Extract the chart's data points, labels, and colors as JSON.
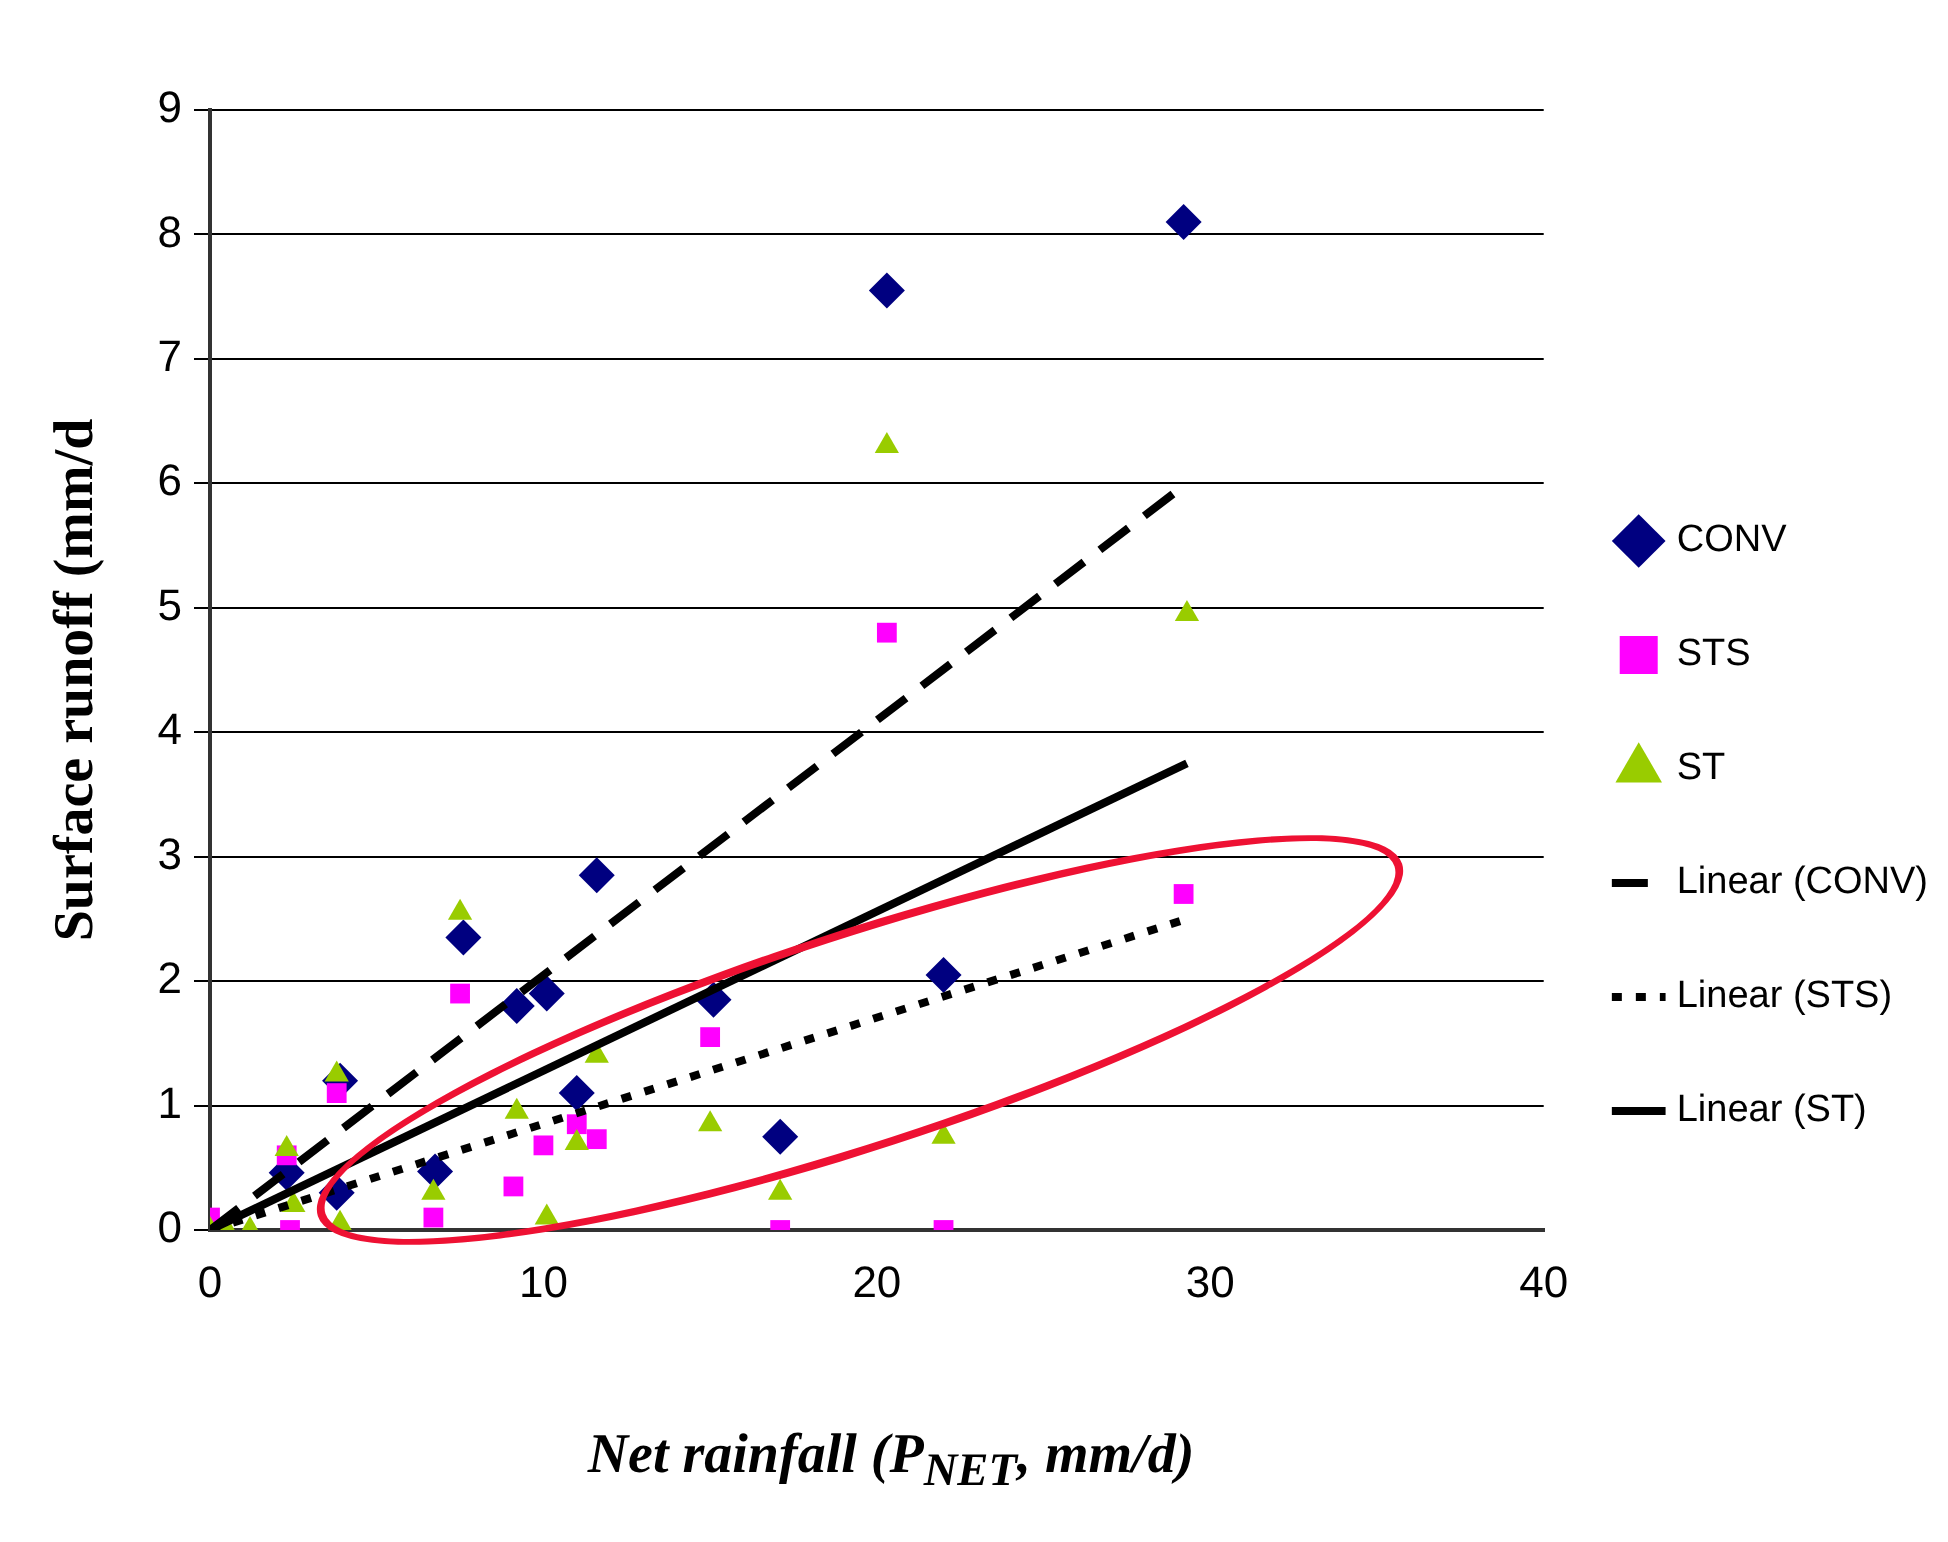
{
  "chart_data": {
    "type": "scatter",
    "xlabel": "Net rainfall (P$_{NET}$, mm/d)",
    "ylabel": "Surface runoff (mm/d",
    "xlim": [
      0,
      40
    ],
    "xticks": [
      0,
      10,
      20,
      30,
      40
    ],
    "ylim": [
      0,
      9
    ],
    "yticks": [
      0,
      1,
      2,
      3,
      4,
      5,
      6,
      7,
      8,
      9
    ],
    "grid": "y",
    "legend": "right",
    "series": [
      {
        "name": "CONV",
        "color": "#000080",
        "marker": "diamond",
        "x": [
          2.3,
          3.8,
          3.9,
          6.75,
          7.6,
          9.2,
          10.1,
          11,
          11.6,
          15.1,
          17.1,
          20.3,
          22,
          29.2
        ],
        "values": [
          0.46,
          0.3,
          1.2,
          0.47,
          2.35,
          1.8,
          1.9,
          1.1,
          2.85,
          1.85,
          0.75,
          7.55,
          2.05,
          8.1
        ]
      },
      {
        "name": "STS",
        "color": "#ff00ff",
        "marker": "square",
        "x": [
          0,
          2.3,
          2.4,
          3.8,
          6.7,
          7.5,
          9.1,
          10,
          11,
          11.6,
          15,
          17.1,
          20.3,
          22,
          29.2
        ],
        "values": [
          0.1,
          0.6,
          0,
          1.1,
          0.1,
          1.9,
          0.35,
          0.68,
          0.85,
          0.73,
          1.55,
          0,
          4.8,
          0,
          2.7
        ]
      },
      {
        "name": "ST",
        "color": "#99cc00",
        "marker": "triangle",
        "x": [
          0,
          0.5,
          1.2,
          2.3,
          2.5,
          3.8,
          3.9,
          6.7,
          7.5,
          9.2,
          10.1,
          11,
          11.6,
          15,
          17.1,
          20.3,
          22,
          29.3
        ],
        "values": [
          0,
          0,
          0,
          0.65,
          0.2,
          1.25,
          0.05,
          0.3,
          2.55,
          0.95,
          0.1,
          0.7,
          1.4,
          0.85,
          0.3,
          6.3,
          0.75,
          4.95
        ]
      },
      {
        "name": "Linear (CONV)",
        "type": "line",
        "color": "#000000",
        "marker": "none",
        "line_style": "dashed",
        "x": [
          0,
          29.3
        ],
        "values": [
          0,
          6
        ]
      },
      {
        "name": "Linear (STS)",
        "type": "line",
        "color": "#000000",
        "marker": "none",
        "line_style": "dotted",
        "x": [
          0,
          29.3
        ],
        "values": [
          0,
          2.5
        ]
      },
      {
        "name": "Linear (ST)",
        "type": "line",
        "color": "#000000",
        "marker": "none",
        "line_style": "solid",
        "x": [
          0,
          29.3
        ],
        "values": [
          0,
          3.75
        ]
      }
    ]
  }
}
